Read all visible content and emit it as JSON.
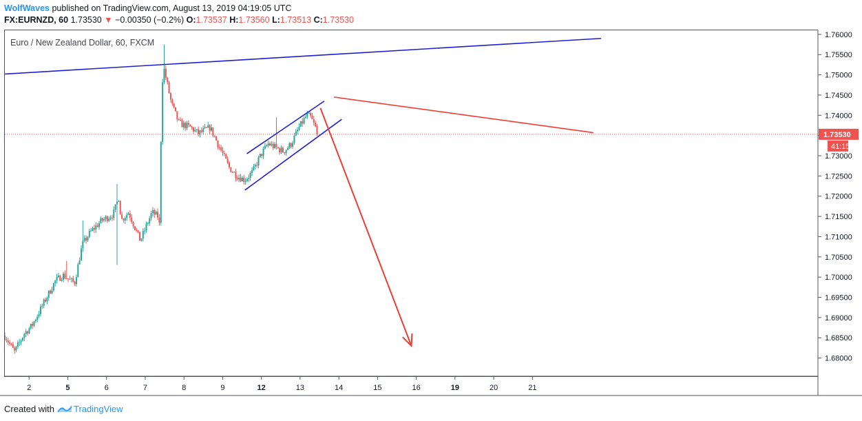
{
  "header": {
    "author": "WolfWaves",
    "published_text": " published on TradingView.com, August 13, 2019 04:19:05 UTC",
    "symbol": "FX:EURNZD, 60",
    "last": "1.73530",
    "change_arrow": "▼",
    "change": "−0.00350 (−0.2%)",
    "o_label": "O:",
    "o_value": "1.73537",
    "h_label": "H:",
    "h_value": "1.73560",
    "l_label": "L:",
    "l_value": "1.73513",
    "c_label": "C:",
    "c_value": "1.73530"
  },
  "footer": {
    "created_with": "Created with",
    "brand": "TradingView"
  },
  "colors": {
    "up": "#26a69a",
    "down": "#ef5350",
    "blue_line": "#1e1ed2",
    "red_line": "#f23c32",
    "axis_text": "#131722"
  },
  "chart_data": {
    "type": "candlestick",
    "title": "Euro / New Zealand Dollar, 60, FXCM",
    "symbol": "FX:EURNZD",
    "timeframe": "60",
    "ylim": [
      1.6755,
      1.761
    ],
    "xlim": [
      1,
      22
    ],
    "y_ticks": [
      "1.68000",
      "1.68500",
      "1.69000",
      "1.69500",
      "1.70000",
      "1.70500",
      "1.71000",
      "1.71500",
      "1.72000",
      "1.72500",
      "1.73000",
      "1.73500",
      "1.74000",
      "1.74500",
      "1.75000",
      "1.75500",
      "1.76000"
    ],
    "x_ticks": [
      {
        "x": 2,
        "label": "2",
        "bold": false
      },
      {
        "x": 3,
        "label": "5",
        "bold": true
      },
      {
        "x": 4,
        "label": "6",
        "bold": false
      },
      {
        "x": 5,
        "label": "7",
        "bold": false
      },
      {
        "x": 6,
        "label": "8",
        "bold": false
      },
      {
        "x": 7,
        "label": "9",
        "bold": false
      },
      {
        "x": 8,
        "label": "12",
        "bold": true
      },
      {
        "x": 9,
        "label": "13",
        "bold": false
      },
      {
        "x": 10,
        "label": "14",
        "bold": false
      },
      {
        "x": 11,
        "label": "15",
        "bold": false
      },
      {
        "x": 12,
        "label": "16",
        "bold": false
      },
      {
        "x": 13,
        "label": "19",
        "bold": true
      },
      {
        "x": 14,
        "label": "20",
        "bold": false
      },
      {
        "x": 15,
        "label": "21",
        "bold": false
      }
    ],
    "last_price": {
      "value": 1.7353,
      "label": "1.73530",
      "countdown": "41:15"
    },
    "waypoints": [
      [
        1.0,
        1.6855
      ],
      [
        1.25,
        1.6815
      ],
      [
        1.5,
        1.686
      ],
      [
        1.7,
        1.688
      ],
      [
        2.0,
        1.6935
      ],
      [
        2.3,
        1.699
      ],
      [
        2.5,
        1.7005
      ],
      [
        2.8,
        1.6985
      ],
      [
        3.0,
        1.708
      ],
      [
        3.2,
        1.711
      ],
      [
        3.5,
        1.714
      ],
      [
        3.8,
        1.7155
      ],
      [
        3.95,
        1.72
      ],
      [
        4.0,
        1.714
      ],
      [
        4.2,
        1.716
      ],
      [
        4.5,
        1.709
      ],
      [
        4.8,
        1.716
      ],
      [
        4.95,
        1.715
      ],
      [
        5.0,
        1.7125
      ],
      [
        5.05,
        1.746
      ],
      [
        5.1,
        1.752
      ],
      [
        5.3,
        1.743
      ],
      [
        5.5,
        1.738
      ],
      [
        5.8,
        1.737
      ],
      [
        6.0,
        1.7355
      ],
      [
        6.3,
        1.737
      ],
      [
        6.5,
        1.733
      ],
      [
        6.8,
        1.727
      ],
      [
        7.0,
        1.725
      ],
      [
        7.2,
        1.724
      ],
      [
        7.4,
        1.726
      ],
      [
        7.6,
        1.73
      ],
      [
        7.8,
        1.733
      ],
      [
        8.0,
        1.732
      ],
      [
        8.2,
        1.731
      ],
      [
        8.4,
        1.733
      ],
      [
        8.6,
        1.737
      ],
      [
        8.8,
        1.74
      ],
      [
        8.9,
        1.7395
      ],
      [
        9.1,
        1.7353
      ]
    ],
    "candle_spacing": 0.042,
    "extreme_wicks": [
      {
        "x": 5.1,
        "high": 1.7575
      },
      {
        "x": 3.9,
        "high": 1.723,
        "low": 1.703
      },
      {
        "x": 8.0,
        "high": 1.7395
      },
      {
        "x": 2.6,
        "high": 1.704
      },
      {
        "x": 3.0,
        "high": 1.714
      }
    ],
    "trendlines": [
      {
        "name": "upper-resistance-line",
        "color": "#1e1ed2",
        "points": [
          [
            1.0,
            1.7502
          ],
          [
            16.4,
            1.759
          ]
        ]
      },
      {
        "name": "channel-upper-line",
        "color": "#1e1ed2",
        "points": [
          [
            7.25,
            1.7305
          ],
          [
            9.25,
            1.7435
          ]
        ]
      },
      {
        "name": "channel-lower-line",
        "color": "#1e1ed2",
        "points": [
          [
            7.2,
            1.7215
          ],
          [
            9.7,
            1.739
          ]
        ]
      },
      {
        "name": "red-descending-line",
        "color": "#f23c32",
        "points": [
          [
            9.5,
            1.7445
          ],
          [
            16.2,
            1.7357
          ]
        ]
      }
    ],
    "projection_arrow": {
      "color": "#f23c32",
      "from": [
        9.15,
        1.7418
      ],
      "to": [
        11.5,
        1.683
      ]
    }
  }
}
